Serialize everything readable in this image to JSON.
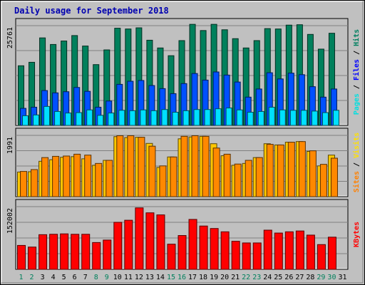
{
  "chart_data": {
    "type": "bar",
    "title": "Daily usage for September 2018",
    "categories": [
      "1",
      "2",
      "3",
      "4",
      "5",
      "6",
      "7",
      "8",
      "9",
      "10",
      "11",
      "12",
      "13",
      "14",
      "15",
      "16",
      "17",
      "18",
      "19",
      "20",
      "21",
      "22",
      "23",
      "24",
      "25",
      "26",
      "27",
      "28",
      "29",
      "30",
      "31"
    ],
    "weekend_days": [
      "1",
      "2",
      "8",
      "9",
      "15",
      "16",
      "22",
      "23",
      "29",
      "30"
    ],
    "panels": [
      {
        "name": "hits-files-pages",
        "ymax_label": "25761",
        "ymax": 25761,
        "right_label": [
          {
            "text": "Pages",
            "color": "#00e0e0"
          },
          {
            "text": " / ",
            "color": "#000000"
          },
          {
            "text": "Files",
            "color": "#0000ff"
          },
          {
            "text": " / ",
            "color": "#000000"
          },
          {
            "text": "Hits",
            "color": "#008060"
          }
        ],
        "series": [
          {
            "name": "Hits",
            "color": "#00805c",
            "values": [
              15400,
              16300,
              22600,
              20900,
              21800,
              23200,
              20500,
              15700,
              19500,
              25100,
              24900,
              25200,
              22000,
              20000,
              18000,
              21900,
              26100,
              24500,
              26100,
              24700,
              22400,
              20000,
              21900,
              25000,
              24900,
              25900,
              26000,
              23500,
              19700,
              23800,
              0
            ]
          },
          {
            "name": "Files",
            "color": "#0050ff",
            "values": [
              4400,
              4700,
              9000,
              8400,
              8700,
              9800,
              8800,
              4700,
              6300,
              10600,
              11400,
              11600,
              10300,
              9500,
              8200,
              10800,
              13400,
              11700,
              13800,
              13000,
              11200,
              7300,
              9400,
              13600,
              12000,
              13500,
              13100,
              10000,
              7300,
              9400,
              0
            ]
          },
          {
            "name": "Pages",
            "color": "#00e0ff",
            "values": [
              2500,
              2700,
              4900,
              3600,
              3200,
              3300,
              4000,
              2600,
              3200,
              3900,
              3800,
              4000,
              3800,
              4100,
              3400,
              3800,
              4100,
              4100,
              4300,
              4500,
              4000,
              3400,
              3600,
              4700,
              4000,
              3900,
              3900,
              3700,
              3300,
              3900,
              0
            ]
          }
        ]
      },
      {
        "name": "visits-sites",
        "ymax_label": "1991",
        "ymax": 1991,
        "right_label": [
          {
            "text": "Sites",
            "color": "#ff8000"
          },
          {
            "text": " / ",
            "color": "#000000"
          },
          {
            "text": "Visits",
            "color": "#ffe000"
          }
        ],
        "series": [
          {
            "name": "Visits",
            "color": "#ffc800",
            "values": [
              800,
              810,
              1150,
              1200,
              1280,
              1300,
              1230,
              1020,
              1180,
              1950,
              1920,
              1930,
              1730,
              950,
              1290,
              1880,
              1940,
              1960,
              1720,
              1330,
              1020,
              1080,
              1270,
              1720,
              1680,
              1770,
              1790,
              1470,
              1000,
              1350,
              0
            ]
          },
          {
            "name": "Sites",
            "color": "#ff8800",
            "values": [
              820,
              880,
              1270,
              1310,
              1320,
              1380,
              1350,
              1080,
              1180,
              1980,
              1980,
              1930,
              1640,
              1000,
              1290,
              1960,
              1980,
              1960,
              1580,
              1380,
              1060,
              1180,
              1270,
              1700,
              1680,
              1770,
              1790,
              1490,
              1050,
              1250,
              0
            ]
          }
        ]
      },
      {
        "name": "kbytes",
        "ymax_label": "152002",
        "ymax": 152002,
        "right_label": [
          {
            "text": "KBytes",
            "color": "#ff0000"
          }
        ],
        "series": [
          {
            "name": "KBytes",
            "color": "#ff0000",
            "values": [
              58000,
              54000,
              84000,
              85000,
              86000,
              85000,
              85000,
              65000,
              71000,
              114000,
              119000,
              149000,
              137000,
              132000,
              61000,
              82000,
              121000,
              105000,
              99000,
              91000,
              68000,
              64000,
              64000,
              95000,
              88000,
              91000,
              93000,
              83000,
              60000,
              78000,
              0
            ]
          }
        ]
      }
    ]
  }
}
